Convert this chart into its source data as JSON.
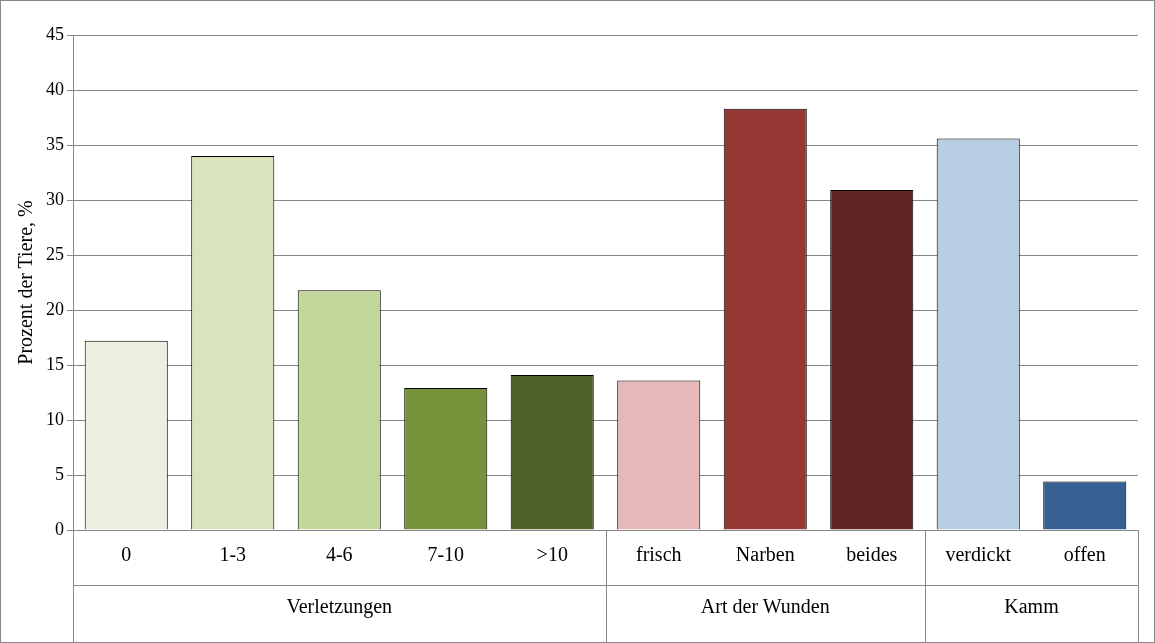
{
  "chart_data": {
    "type": "bar",
    "ylabel": "Prozent der Tiere, %",
    "categories": [
      "0",
      "1-3",
      "4-6",
      "7-10",
      ">10",
      "frisch",
      "Narben",
      "beides",
      "verdickt",
      "offen"
    ],
    "values": [
      17.2,
      34,
      21.8,
      12.9,
      14.1,
      13.6,
      38.3,
      30.9,
      35.6,
      4.4
    ],
    "colors": [
      "#ebf0e0",
      "#d8e4bc",
      "#c4d79b",
      "#76933c",
      "#4f6228",
      "#e6b9b8",
      "#953735",
      "#632523",
      "#b8cce4",
      "#366092"
    ],
    "ylim": [
      0,
      45
    ],
    "yticks": [
      0,
      5,
      10,
      15,
      20,
      25,
      30,
      35,
      40,
      45
    ],
    "grid": "y",
    "legend": false,
    "annotations": [
      "Verletzungen",
      "Art der Wunden",
      "Kamm"
    ]
  }
}
